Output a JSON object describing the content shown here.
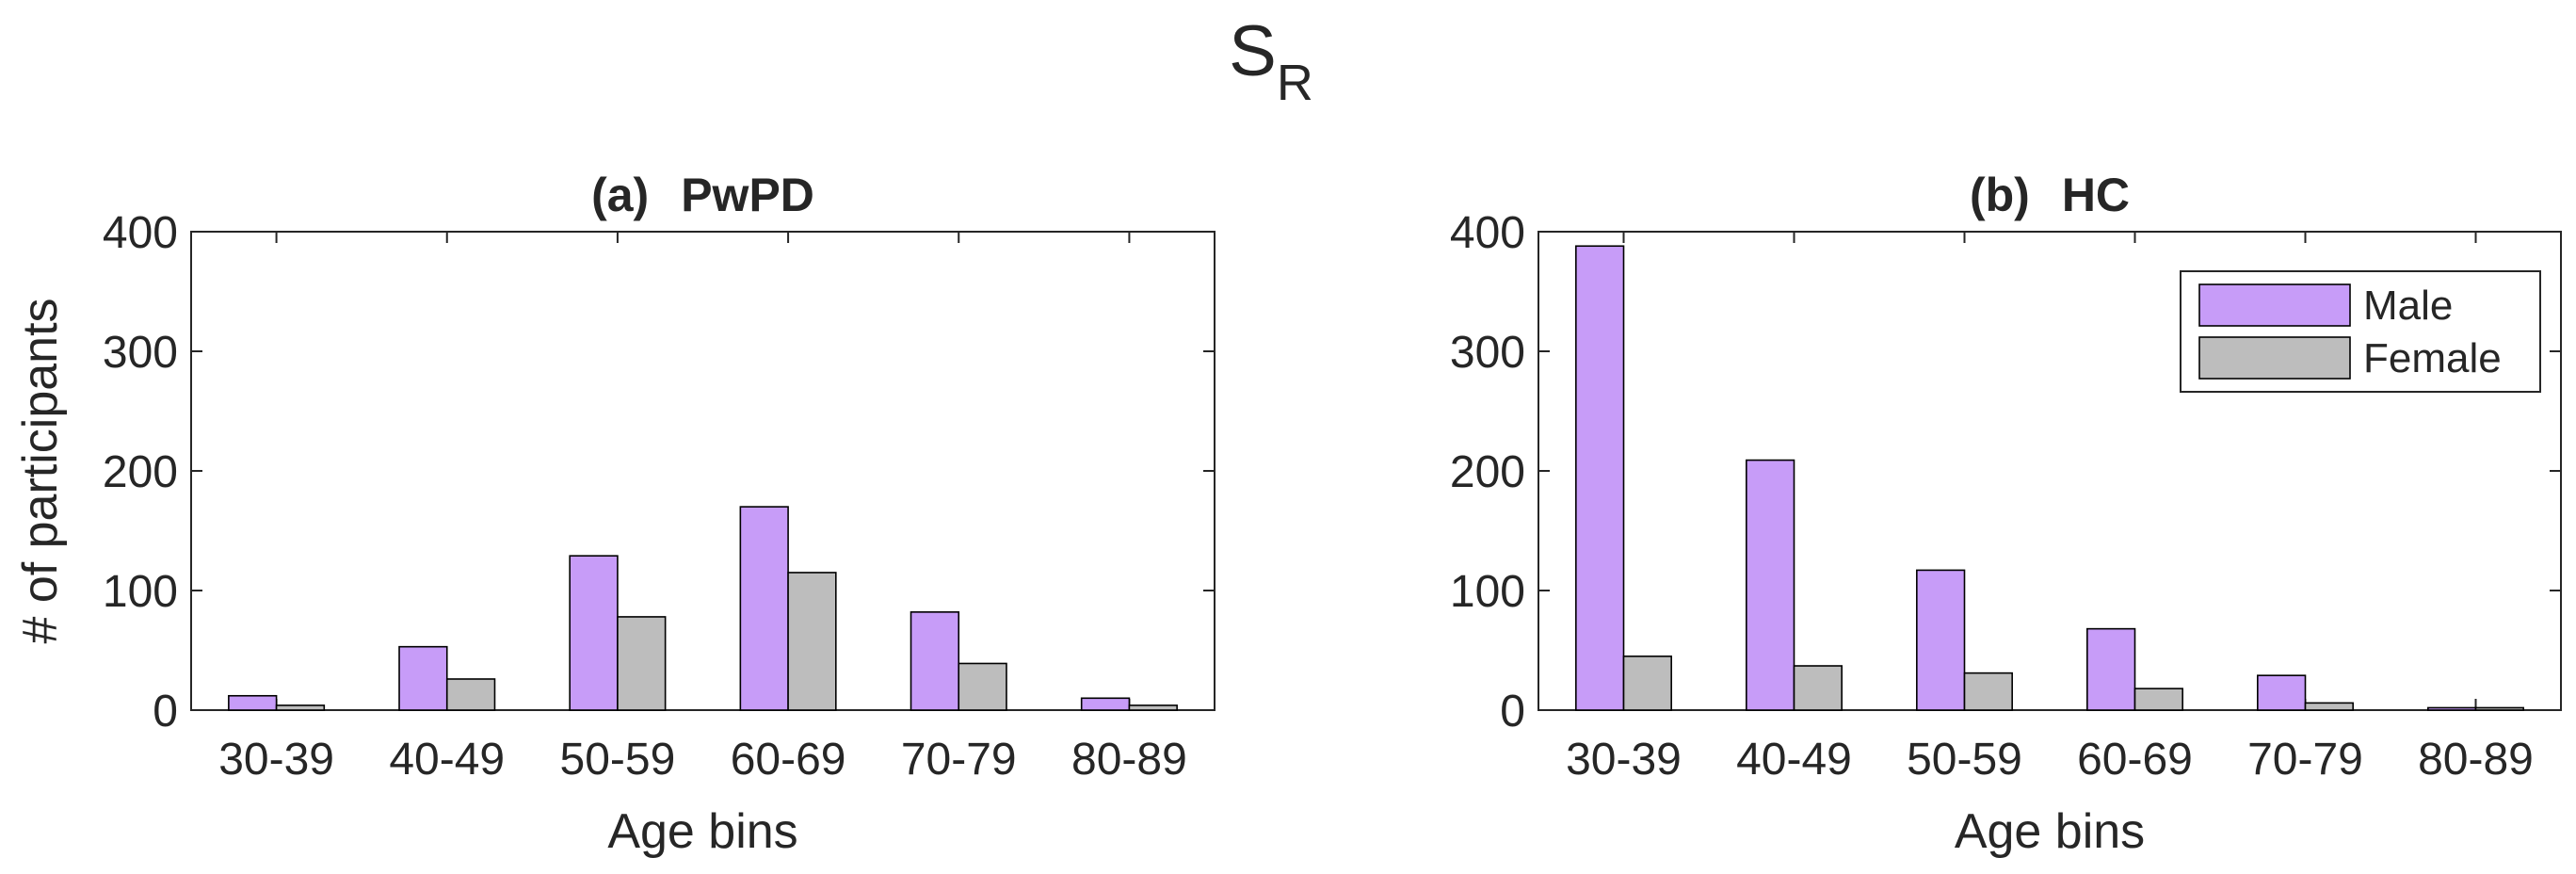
{
  "figure": {
    "suptitle_main": "S",
    "suptitle_sub": "R"
  },
  "chart_data": [
    {
      "type": "bar",
      "title_letter": "(a)",
      "title": "PwPD",
      "xlabel": "Age bins",
      "ylabel": "# of participants",
      "categories": [
        "30-39",
        "40-49",
        "50-59",
        "60-69",
        "70-79",
        "80-89"
      ],
      "series": [
        {
          "name": "Male",
          "values": [
            12,
            53,
            129,
            170,
            82,
            10
          ]
        },
        {
          "name": "Female",
          "values": [
            4,
            26,
            78,
            115,
            39,
            4
          ]
        }
      ],
      "ylim": [
        0,
        400
      ],
      "yticks": [
        "0",
        "100",
        "200",
        "300",
        "400"
      ],
      "grid": false,
      "legend": null
    },
    {
      "type": "bar",
      "title_letter": "(b)",
      "title": "HC",
      "xlabel": "Age bins",
      "ylabel": "",
      "categories": [
        "30-39",
        "40-49",
        "50-59",
        "60-69",
        "70-79",
        "80-89"
      ],
      "series": [
        {
          "name": "Male",
          "values": [
            388,
            209,
            117,
            68,
            29,
            2
          ]
        },
        {
          "name": "Female",
          "values": [
            45,
            37,
            31,
            18,
            6,
            2
          ]
        }
      ],
      "ylim": [
        0,
        400
      ],
      "yticks": [
        "0",
        "100",
        "200",
        "300",
        "400"
      ],
      "grid": false,
      "legend": "top-right"
    }
  ],
  "colors": {
    "male": "#c79cf8",
    "female": "#bdbdbd",
    "edge": "#000000",
    "axis": "#262626"
  }
}
